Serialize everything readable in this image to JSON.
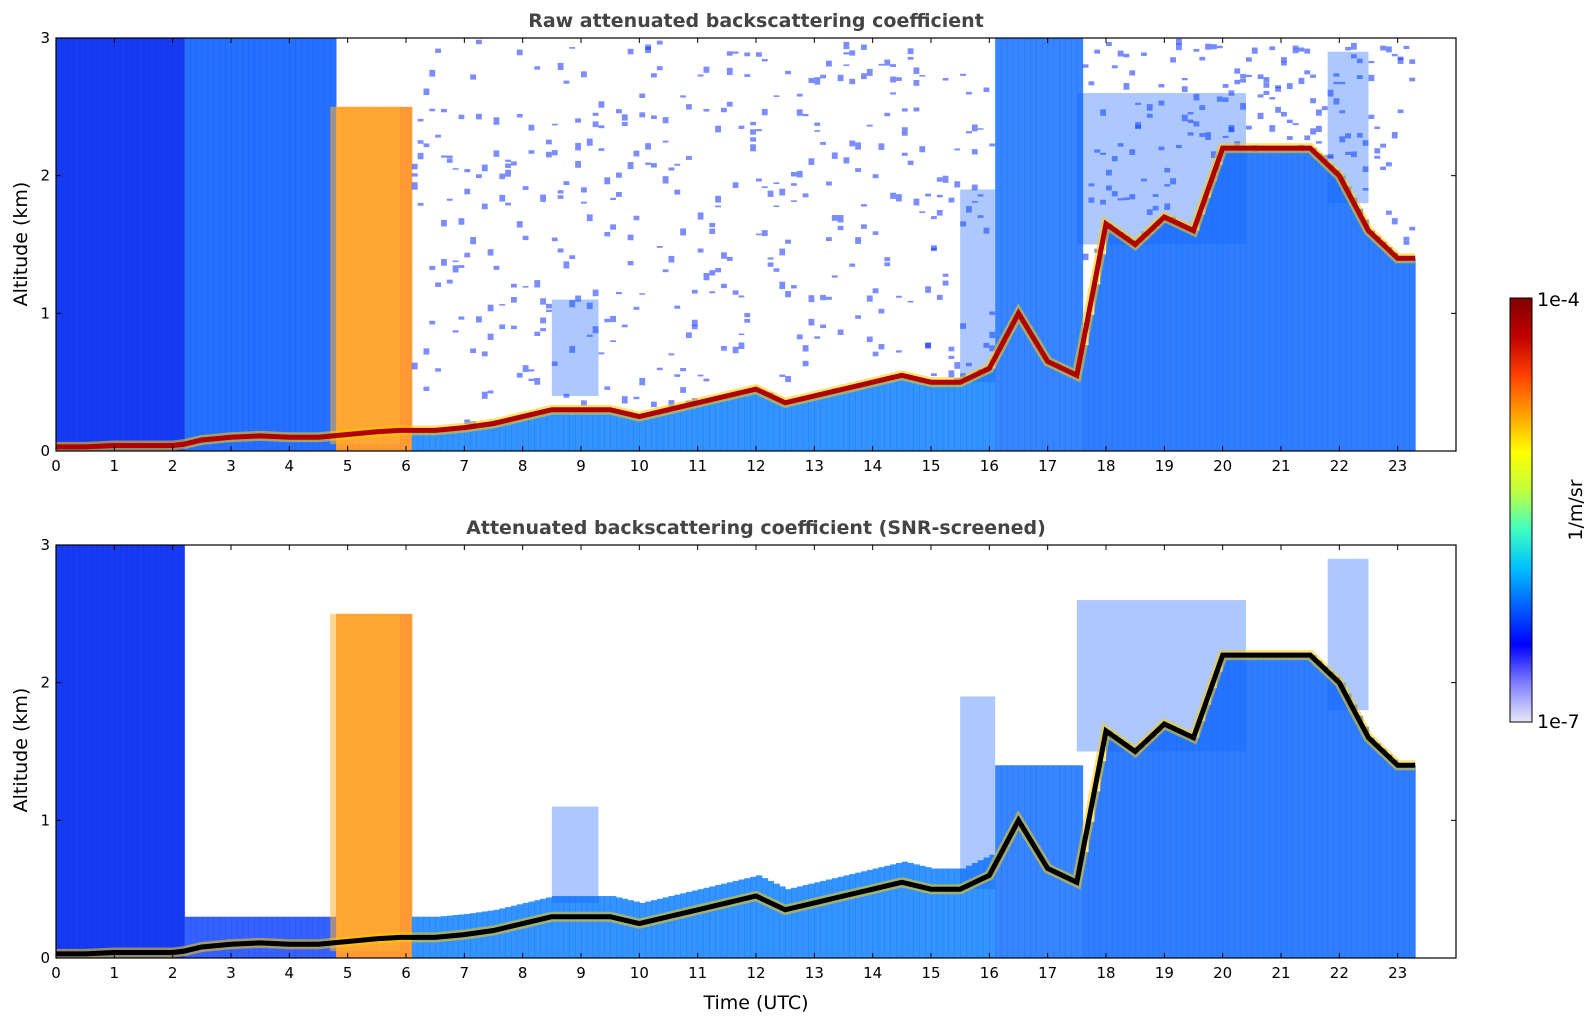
{
  "chart_data": [
    {
      "type": "heatmap",
      "title": "Raw attenuated backscattering coefficient",
      "xlabel": "",
      "ylabel": "Altitude (km)",
      "xlim": [
        0,
        24
      ],
      "ylim": [
        0,
        3
      ],
      "xticks": [
        "0",
        "1",
        "2",
        "3",
        "4",
        "5",
        "6",
        "7",
        "8",
        "9",
        "10",
        "11",
        "12",
        "13",
        "14",
        "15",
        "16",
        "17",
        "18",
        "19",
        "20",
        "21",
        "22",
        "23"
      ],
      "yticks": [
        "0",
        "1",
        "2",
        "3"
      ],
      "data_end_time": 23.3,
      "layer": {
        "time": [
          0,
          0.5,
          1,
          1.5,
          2,
          2.2,
          2.5,
          3,
          3.5,
          4,
          4.5,
          5,
          5.5,
          5.9,
          6.5,
          7,
          7.5,
          8,
          8.5,
          9,
          9.5,
          10,
          10.5,
          11,
          11.5,
          12,
          12.5,
          13,
          13.5,
          14,
          14.5,
          15,
          15.5,
          16,
          16.5,
          17,
          17.5,
          18,
          18.5,
          19,
          19.5,
          20,
          20.5,
          21,
          21.5,
          22,
          22.5,
          23,
          23.3
        ],
        "altitude": [
          0.03,
          0.03,
          0.04,
          0.04,
          0.04,
          0.05,
          0.08,
          0.1,
          0.11,
          0.1,
          0.1,
          0.12,
          0.14,
          0.15,
          0.15,
          0.17,
          0.2,
          0.25,
          0.3,
          0.3,
          0.3,
          0.25,
          0.3,
          0.35,
          0.4,
          0.45,
          0.35,
          0.4,
          0.45,
          0.5,
          0.55,
          0.5,
          0.5,
          0.6,
          1.0,
          0.65,
          0.55,
          1.65,
          1.5,
          1.7,
          1.6,
          2.2,
          2.2,
          2.2,
          2.2,
          2.0,
          1.6,
          1.4,
          1.4
        ]
      },
      "clouds": [
        {
          "t0": 4.7,
          "t1": 5.9,
          "alt0": 0.05,
          "alt1": 2.5
        },
        {
          "t0": 8.5,
          "t1": 9.3,
          "alt0": 0.4,
          "alt1": 1.1
        },
        {
          "t0": 15.5,
          "t1": 16.1,
          "alt0": 0.5,
          "alt1": 1.9
        },
        {
          "t0": 17.5,
          "t1": 20.4,
          "alt0": 1.5,
          "alt1": 2.6
        },
        {
          "t0": 21.8,
          "t1": 22.5,
          "alt0": 1.8,
          "alt1": 2.9
        }
      ]
    },
    {
      "type": "heatmap",
      "title": "Attenuated backscattering coefficient (SNR-screened)",
      "xlabel": "Time (UTC)",
      "ylabel": "Altitude (km)",
      "xlim": [
        0,
        24
      ],
      "ylim": [
        0,
        3
      ],
      "xticks": [
        "0",
        "1",
        "2",
        "3",
        "4",
        "5",
        "6",
        "7",
        "8",
        "9",
        "10",
        "11",
        "12",
        "13",
        "14",
        "15",
        "16",
        "17",
        "18",
        "19",
        "20",
        "21",
        "22",
        "23"
      ],
      "yticks": [
        "0",
        "1",
        "2",
        "3"
      ],
      "data_end_time": 23.3
    }
  ],
  "colorbar": {
    "label": "1/m/sr",
    "min_label": "1e-7",
    "max_label": "1e-4",
    "colormap": [
      "#e8e8f8",
      "#8080ff",
      "#0000ff",
      "#0060ff",
      "#00c0ff",
      "#40ffc0",
      "#c0ff40",
      "#ffff00",
      "#ffa000",
      "#ff4000",
      "#c00000",
      "#800000"
    ]
  }
}
